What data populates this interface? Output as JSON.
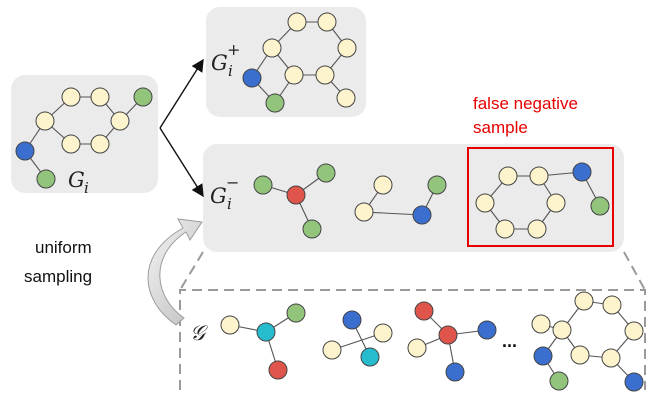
{
  "labels": {
    "anchor_symbol": "G",
    "anchor_sub": "i",
    "positive_symbol": "G",
    "positive_sub": "i",
    "positive_sup": "+",
    "negative_symbol": "G",
    "negative_sub": "i",
    "negative_sup": "−",
    "pool_symbol": "𝒢",
    "false_negative_line1": "false negative",
    "false_negative_line2": "sample",
    "uniform_line1": "uniform",
    "uniform_line2": "sampling",
    "ellipsis": "..."
  },
  "colors": {
    "box_fill": "#ebebeb",
    "node_default": "#fdf3cc",
    "node_green": "#92c47c",
    "node_blue": "#3a6ecf",
    "node_red": "#e0554b",
    "node_cyan": "#26bccd",
    "highlight": "#e60000",
    "dashed": "#9a9a9a"
  }
}
